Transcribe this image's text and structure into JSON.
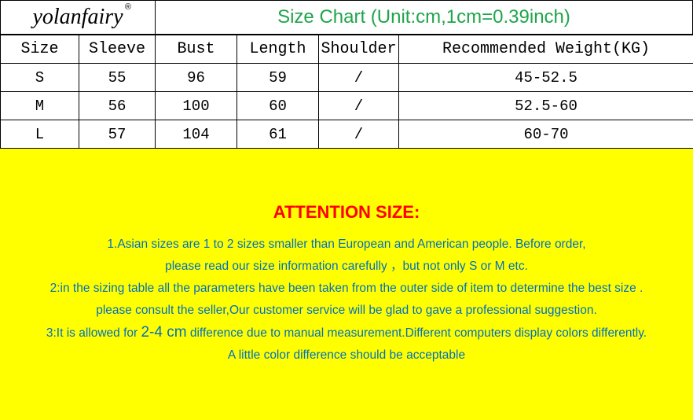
{
  "brand": {
    "name": "yolanfairy",
    "registered": "®"
  },
  "title": {
    "text": "Size Chart (Unit:cm,1cm=0.39inch)",
    "color": "#1fa54a"
  },
  "table": {
    "columns": [
      "Size",
      "Sleeve",
      "Bust",
      "Length",
      "Shoulder",
      "Recommended Weight(KG)"
    ],
    "rows": [
      [
        "S",
        "55",
        "96",
        "59",
        "/",
        "45-52.5"
      ],
      [
        "M",
        "56",
        "100",
        "60",
        "/",
        "52.5-60"
      ],
      [
        "L",
        "57",
        "104",
        "61",
        "/",
        "60-70"
      ]
    ],
    "header_fontsize": 20,
    "cell_fontsize": 19,
    "border_color": "#000000",
    "font_family": "Courier New"
  },
  "attention": {
    "background_color": "#ffff00",
    "title": "ATTENTION SIZE:",
    "title_color": "#ff0000",
    "text_color": "#0070c0",
    "lines": [
      "1.Asian sizes are 1 to 2 sizes smaller than European and American people. Before order,",
      "please read our size information carefully ，but not only S or M etc.",
      "2:in the sizing table all the parameters have been taken from the outer side of item to determine the best size .",
      "please consult the seller,Our customer service will be glad to gave a professional suggestion."
    ],
    "line3_prefix": "3:It is allowed for ",
    "line3_big": "2-4 cm",
    "line3_suffix": " difference due to manual measurement.Different computers display colors differently.",
    "last_line": "A little color difference should be acceptable"
  }
}
